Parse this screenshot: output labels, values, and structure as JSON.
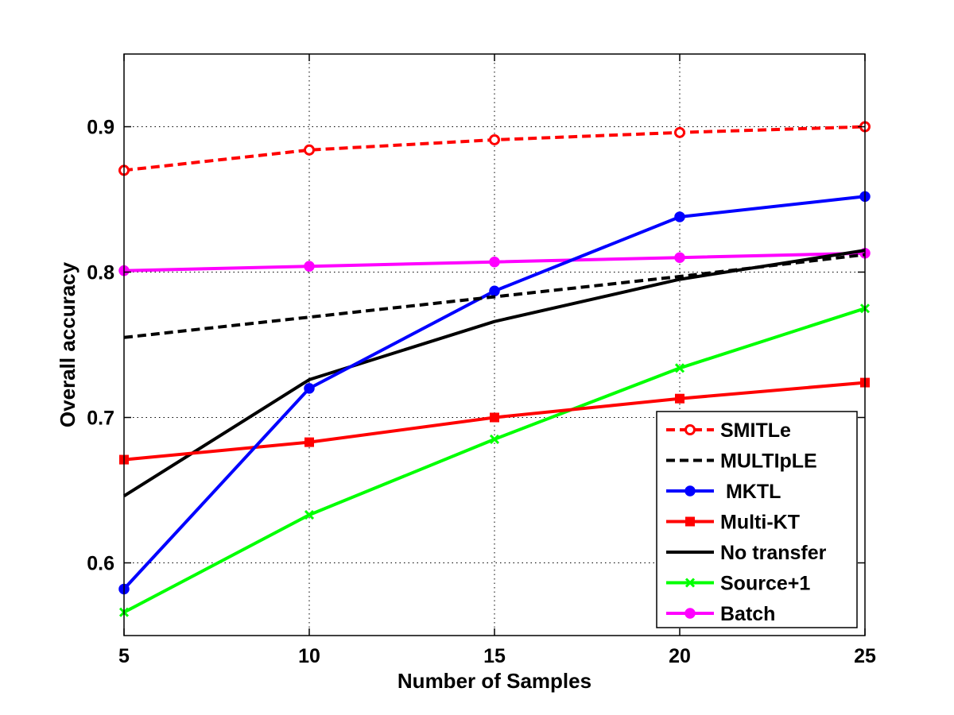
{
  "chart_data": {
    "type": "line",
    "title": "",
    "xlabel": "Number of Samples",
    "ylabel": "Overall accuracy",
    "x": [
      5,
      10,
      15,
      20,
      25
    ],
    "xlim": [
      5,
      25
    ],
    "ylim": [
      0.55,
      0.95
    ],
    "xticks": [
      5,
      10,
      15,
      20,
      25
    ],
    "yticks": [
      0.6,
      0.7,
      0.8,
      0.9
    ],
    "xtick_labels": [
      "5",
      "10",
      "15",
      "20",
      "25"
    ],
    "ytick_labels": [
      "0.6",
      "0.7",
      "0.8",
      "0.9"
    ],
    "grid": true,
    "legend_position": "bottom-right",
    "series": [
      {
        "name": "SMITLe",
        "values": [
          0.87,
          0.884,
          0.891,
          0.896,
          0.9
        ],
        "color": "#ff0000",
        "dashed": true,
        "marker": "circle-open"
      },
      {
        "name": "MULTIpLE",
        "values": [
          0.755,
          0.769,
          0.783,
          0.797,
          0.812
        ],
        "color": "#000000",
        "dashed": true,
        "marker": "none"
      },
      {
        "name": " MKTL",
        "values": [
          0.582,
          0.72,
          0.787,
          0.838,
          0.852
        ],
        "color": "#0000ff",
        "dashed": false,
        "marker": "circle-filled"
      },
      {
        "name": "Multi-KT",
        "values": [
          0.671,
          0.683,
          0.7,
          0.713,
          0.724
        ],
        "color": "#ff0000",
        "dashed": false,
        "marker": "square"
      },
      {
        "name": "No transfer",
        "values": [
          0.646,
          0.726,
          0.766,
          0.795,
          0.815
        ],
        "color": "#000000",
        "dashed": false,
        "marker": "none"
      },
      {
        "name": "Source+1",
        "values": [
          0.566,
          0.633,
          0.685,
          0.734,
          0.775
        ],
        "color": "#00ff00",
        "dashed": false,
        "marker": "x"
      },
      {
        "name": "Batch",
        "values": [
          0.801,
          0.804,
          0.807,
          0.81,
          0.813
        ],
        "color": "#ff00ff",
        "dashed": false,
        "marker": "circle-filled"
      }
    ]
  }
}
